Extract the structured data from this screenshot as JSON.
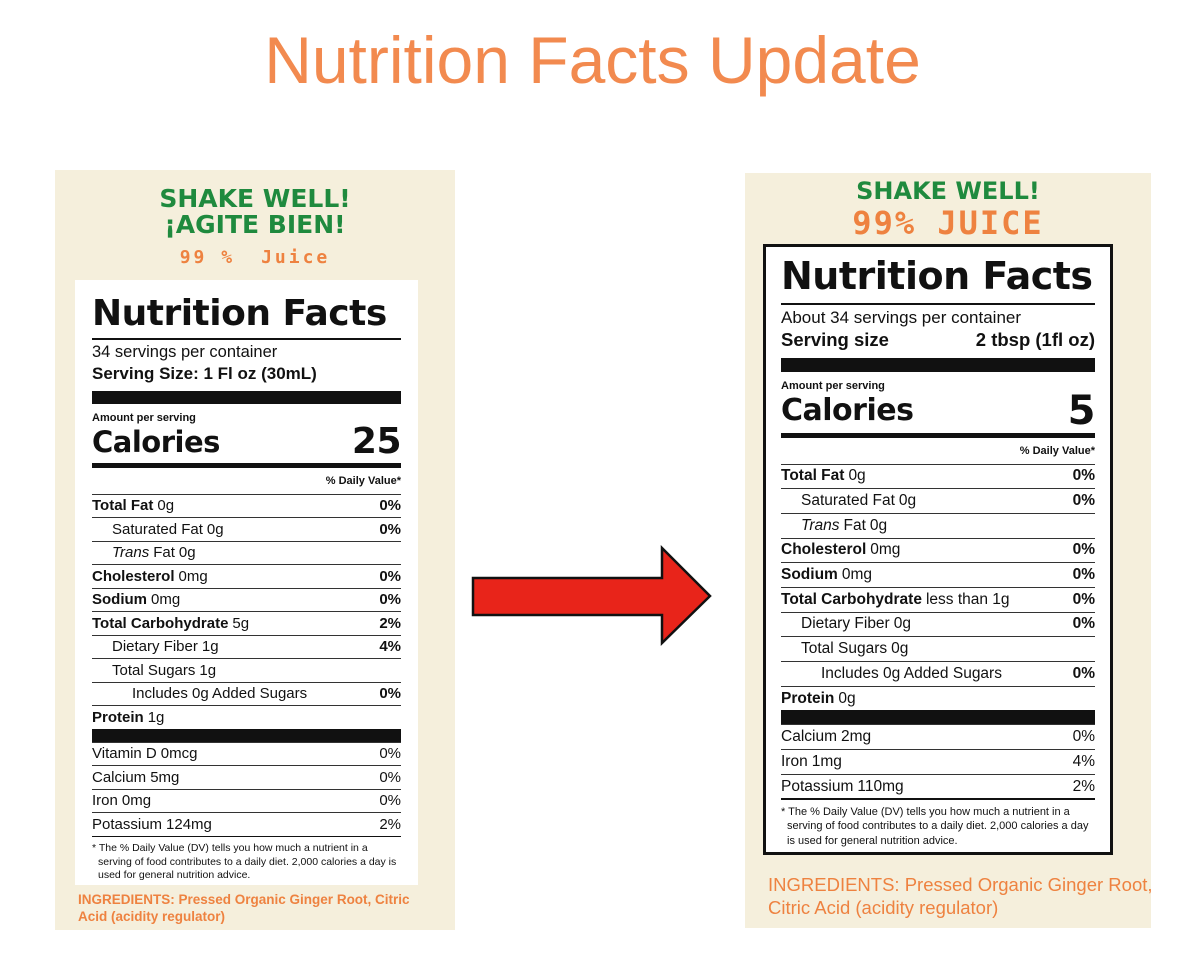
{
  "title": "Nutrition Facts Update",
  "before": {
    "shake": [
      "SHAKE WELL!",
      "¡AGITE BIEN!"
    ],
    "juice": [
      "99 %",
      "Juice"
    ],
    "facts": {
      "heading": "Nutrition Facts",
      "servings": "34 servings per container",
      "serving_size": "Serving Size: 1 Fl oz (30mL)",
      "amount_per_serving": "Amount per serving",
      "calories_label": "Calories",
      "calories": 25,
      "dv_header": "% Daily Value*",
      "nutrients": [
        {
          "label": "Total Fat",
          "amount": "0g",
          "dv": "0%"
        },
        {
          "label": "Saturated Fat",
          "amount": "0g",
          "dv": "0%"
        },
        {
          "italic": "Trans",
          "label": "Fat",
          "amount": "0g"
        },
        {
          "label": "Cholesterol",
          "amount": "0mg",
          "dv": "0%"
        },
        {
          "label": "Sodium",
          "amount": "0mg",
          "dv": "0%"
        },
        {
          "label": "Total Carbohydrate",
          "amount": "5g",
          "dv": "2%"
        },
        {
          "label": "Dietary Fiber",
          "amount": "1g",
          "dv": "4%"
        },
        {
          "label": "Total Sugars",
          "amount": "1g"
        },
        {
          "label": "Includes 0g Added Sugars",
          "dv": "0%"
        },
        {
          "label": "Protein",
          "amount": "1g"
        }
      ],
      "micronutrients": [
        {
          "label": "Vitamin D",
          "amount": "0mcg",
          "dv": "0%"
        },
        {
          "label": "Calcium",
          "amount": "5mg",
          "dv": "0%"
        },
        {
          "label": "Iron",
          "amount": "0mg",
          "dv": "0%"
        },
        {
          "label": "Potassium",
          "amount": "124mg",
          "dv": "2%"
        }
      ],
      "footnote": "* The % Daily Value (DV) tells you how much a nutrient in a serving of food contributes to a daily diet. 2,000 calories a day is used for general nutrition advice."
    },
    "ingredients": "INGREDIENTS: Pressed Organic Ginger Root, Citric Acid (acidity regulator)"
  },
  "after": {
    "shake": [
      "SHAKE WELL!"
    ],
    "juice": [
      "99% JUICE"
    ],
    "facts": {
      "heading": "Nutrition Facts",
      "servings": "About 34 servings per container",
      "serving_size_label": "Serving size",
      "serving_size": "2 tbsp (1fl oz)",
      "amount_per_serving": "Amount per serving",
      "calories_label": "Calories",
      "calories": 5,
      "dv_header": "% Daily Value*",
      "nutrients": [
        {
          "label": "Total Fat",
          "amount": "0g",
          "dv": "0%"
        },
        {
          "label": "Saturated Fat",
          "amount": "0g",
          "dv": "0%"
        },
        {
          "italic": "Trans",
          "label": "Fat",
          "amount": "0g"
        },
        {
          "label": "Cholesterol",
          "amount": "0mg",
          "dv": "0%"
        },
        {
          "label": "Sodium",
          "amount": "0mg",
          "dv": "0%"
        },
        {
          "label": "Total Carbohydrate",
          "amount": "less than 1g",
          "dv": "0%"
        },
        {
          "label": "Dietary Fiber",
          "amount": "0g",
          "dv": "0%"
        },
        {
          "label": "Total Sugars",
          "amount": "0g"
        },
        {
          "label": "Includes 0g Added Sugars",
          "dv": "0%"
        },
        {
          "label": "Protein",
          "amount": "0g"
        }
      ],
      "micronutrients": [
        {
          "label": "Calcium",
          "amount": "2mg",
          "dv": "0%"
        },
        {
          "label": "Iron",
          "amount": "1mg",
          "dv": "4%"
        },
        {
          "label": "Potassium",
          "amount": "110mg",
          "dv": "2%"
        }
      ],
      "footnote": "* The % Daily Value (DV) tells you how much a nutrient in a serving of food contributes to a daily diet. 2,000 calories a day is used for general nutrition advice."
    },
    "ingredients": "INGREDIENTS: Pressed Organic Ginger Root, Citric Acid (acidity regulator)"
  }
}
